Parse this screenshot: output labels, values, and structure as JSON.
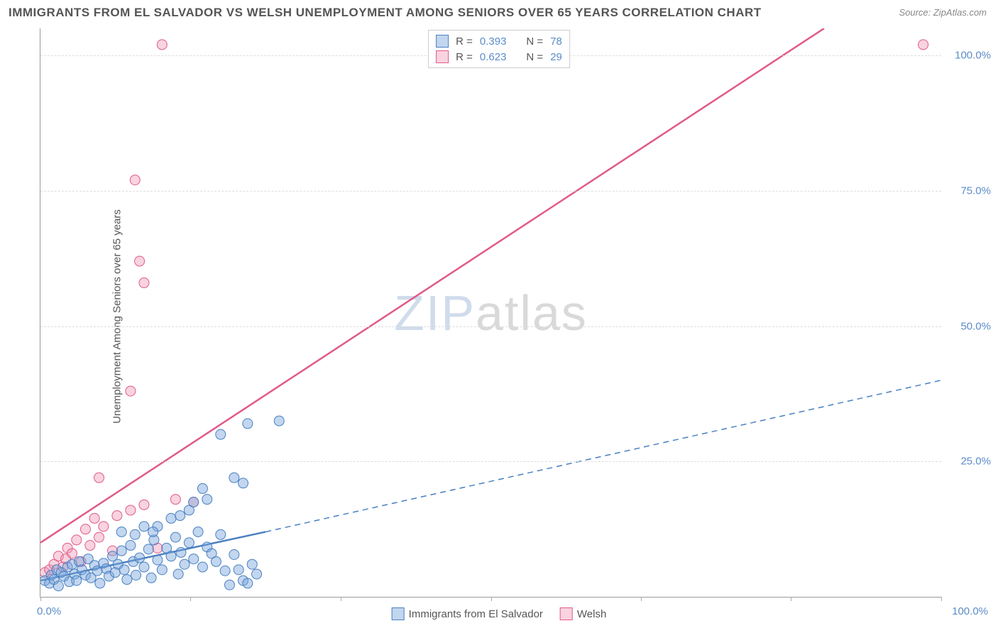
{
  "title": "IMMIGRANTS FROM EL SALVADOR VS WELSH UNEMPLOYMENT AMONG SENIORS OVER 65 YEARS CORRELATION CHART",
  "source": "Source: ZipAtlas.com",
  "watermark_zip": "ZIP",
  "watermark_atlas": "atlas",
  "chart": {
    "type": "scatter",
    "xlim": [
      0,
      100
    ],
    "ylim": [
      0,
      105
    ],
    "x_min_label": "0.0%",
    "x_max_label": "100.0%",
    "y_ticks": [
      25,
      50,
      75,
      100
    ],
    "y_tick_labels": [
      "25.0%",
      "50.0%",
      "75.0%",
      "100.0%"
    ],
    "x_ticks": [
      0,
      16.66,
      33.33,
      50,
      66.66,
      83.33,
      100
    ],
    "y_axis_label": "Unemployment Among Seniors over 65 years",
    "background_color": "#ffffff",
    "grid_color": "#dddddd",
    "marker_radius": 7,
    "series_blue": {
      "label": "Immigrants from El Salvador",
      "color_fill": "rgba(120,165,220,0.45)",
      "color_stroke": "#4a80c0",
      "R": "0.393",
      "N": "78",
      "trend_solid": {
        "x1": 0,
        "y1": 3,
        "x2": 25,
        "y2": 12
      },
      "trend_dashed": {
        "x1": 25,
        "y1": 12,
        "x2": 100,
        "y2": 40
      },
      "points": [
        [
          0.5,
          3
        ],
        [
          1,
          2.5
        ],
        [
          1.2,
          4
        ],
        [
          1.5,
          3.2
        ],
        [
          1.8,
          5
        ],
        [
          2,
          2
        ],
        [
          2.3,
          4.5
        ],
        [
          2.6,
          3.8
        ],
        [
          3,
          5.5
        ],
        [
          3.2,
          2.8
        ],
        [
          3.5,
          6
        ],
        [
          3.8,
          4.2
        ],
        [
          4,
          3
        ],
        [
          4.3,
          6.5
        ],
        [
          4.6,
          5
        ],
        [
          5,
          4
        ],
        [
          5.3,
          7
        ],
        [
          5.6,
          3.5
        ],
        [
          6,
          5.8
        ],
        [
          6.3,
          4.8
        ],
        [
          6.6,
          2.5
        ],
        [
          7,
          6.2
        ],
        [
          7.3,
          5.2
        ],
        [
          7.6,
          3.8
        ],
        [
          8,
          7.5
        ],
        [
          8.3,
          4.5
        ],
        [
          8.6,
          6
        ],
        [
          9,
          8.5
        ],
        [
          9.3,
          5
        ],
        [
          9.6,
          3.2
        ],
        [
          10,
          9.5
        ],
        [
          10.3,
          6.5
        ],
        [
          10.6,
          4
        ],
        [
          11,
          7.2
        ],
        [
          11.5,
          5.5
        ],
        [
          12,
          8.8
        ],
        [
          12.3,
          3.5
        ],
        [
          12.6,
          10.5
        ],
        [
          13,
          6.8
        ],
        [
          13.5,
          5
        ],
        [
          14,
          9
        ],
        [
          14.5,
          7.5
        ],
        [
          15,
          11
        ],
        [
          15.3,
          4.2
        ],
        [
          15.6,
          8.2
        ],
        [
          16,
          6
        ],
        [
          16.5,
          10
        ],
        [
          17,
          7
        ],
        [
          17.5,
          12
        ],
        [
          18,
          5.5
        ],
        [
          18.5,
          9.2
        ],
        [
          19,
          8
        ],
        [
          19.5,
          6.5
        ],
        [
          20,
          11.5
        ],
        [
          20.5,
          4.8
        ],
        [
          21,
          2.2
        ],
        [
          21.5,
          7.8
        ],
        [
          22,
          5
        ],
        [
          22.5,
          3
        ],
        [
          23,
          2.5
        ],
        [
          23.5,
          6
        ],
        [
          24,
          4.2
        ],
        [
          13,
          13
        ],
        [
          14.5,
          14.5
        ],
        [
          15.5,
          15
        ],
        [
          16.5,
          16
        ],
        [
          17,
          17.5
        ],
        [
          18,
          20
        ],
        [
          18.5,
          18
        ],
        [
          21.5,
          22
        ],
        [
          22.5,
          21
        ],
        [
          23,
          32
        ],
        [
          20,
          30
        ],
        [
          9,
          12
        ],
        [
          10.5,
          11.5
        ],
        [
          11.5,
          13
        ],
        [
          12.5,
          12
        ],
        [
          26.5,
          32.5
        ]
      ]
    },
    "series_pink": {
      "label": "Welsh",
      "color_fill": "rgba(240,145,175,0.40)",
      "color_stroke": "#e05a8a",
      "R": "0.623",
      "N": "29",
      "trend_solid": {
        "x1": 0,
        "y1": 10,
        "x2": 87,
        "y2": 105
      },
      "points": [
        [
          0.5,
          4.5
        ],
        [
          1,
          5
        ],
        [
          1.5,
          6
        ],
        [
          2,
          7.5
        ],
        [
          2.5,
          5.5
        ],
        [
          3,
          9
        ],
        [
          3.5,
          8
        ],
        [
          4,
          10.5
        ],
        [
          4.5,
          6.5
        ],
        [
          5,
          12.5
        ],
        [
          5.5,
          9.5
        ],
        [
          6,
          14.5
        ],
        [
          6.5,
          11
        ],
        [
          7,
          13
        ],
        [
          8,
          8.5
        ],
        [
          8.5,
          15
        ],
        [
          10,
          16
        ],
        [
          11.5,
          17
        ],
        [
          15,
          18
        ],
        [
          17,
          17.5
        ],
        [
          13,
          9
        ],
        [
          6.5,
          22
        ],
        [
          10,
          38
        ],
        [
          11,
          62
        ],
        [
          11.5,
          58
        ],
        [
          10.5,
          77
        ],
        [
          13.5,
          102
        ],
        [
          98,
          102
        ],
        [
          2.8,
          7
        ]
      ]
    }
  },
  "legend": {
    "blue_label": "Immigrants from El Salvador",
    "pink_label": "Welsh"
  },
  "stats_box": {
    "R_label": "R =",
    "N_label": "N ="
  }
}
